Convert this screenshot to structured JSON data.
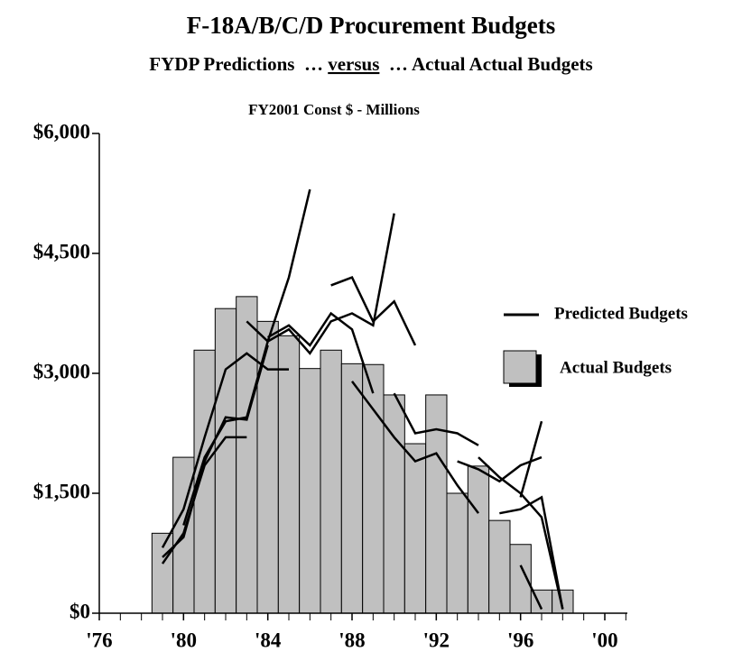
{
  "chart_data": {
    "type": "bar",
    "title": "F-18A/B/C/D Procurement Budgets",
    "subtitle": [
      "FYDP Predictions  … ",
      "versus",
      "  … Actual Actual Budgets"
    ],
    "ylabel": "FY2001 Const $ - Millions",
    "xlim": [
      1976,
      2000
    ],
    "xticks": [
      {
        "value": 1976,
        "label": "'76"
      },
      {
        "value": 1980,
        "label": "'80"
      },
      {
        "value": 1984,
        "label": "'84"
      },
      {
        "value": 1988,
        "label": "'88"
      },
      {
        "value": 1992,
        "label": "'92"
      },
      {
        "value": 1996,
        "label": "'96"
      },
      {
        "value": 2000,
        "label": "'00"
      }
    ],
    "ylim": [
      0,
      6000
    ],
    "yticks": [
      {
        "value": 0,
        "label": "$0"
      },
      {
        "value": 1500,
        "label": "$1,500"
      },
      {
        "value": 3000,
        "label": "$3,000"
      },
      {
        "value": 4500,
        "label": "$4,500"
      },
      {
        "value": 6000,
        "label": "$6,000"
      }
    ],
    "legend": "right",
    "series": [
      {
        "name": "Predicted Budgets",
        "type": "line",
        "color": "#000000",
        "x": [
          1979,
          1980,
          1981,
          1982,
          1983,
          null,
          1979,
          1980,
          1981,
          1982,
          1983,
          1984,
          null,
          1979,
          1980,
          1981,
          1982,
          1983,
          1984,
          1985,
          null,
          1980,
          1981,
          1982,
          1983,
          1984,
          1985,
          1986,
          null,
          1983,
          1984,
          1985,
          1986,
          1987,
          1988,
          1989,
          1990,
          null,
          1984,
          1985,
          1986,
          1987,
          1988,
          1989,
          null,
          1987,
          1988,
          1989,
          1990,
          1991,
          null,
          1988,
          1989,
          1990,
          1991,
          1992,
          1993,
          1994,
          null,
          1990,
          1991,
          1992,
          1993,
          1994,
          null,
          1993,
          1994,
          1995,
          1996,
          1997,
          null,
          1994,
          1995,
          1996,
          1997,
          1998,
          null,
          1995,
          1996,
          1997,
          1998,
          null,
          1996,
          1997,
          null,
          1996,
          1997
        ],
        "values": [
          620,
          1000,
          1850,
          2200,
          2200,
          null,
          700,
          950,
          1900,
          2450,
          2420,
          3350,
          null,
          820,
          1300,
          2200,
          3050,
          3250,
          3050,
          3050,
          null,
          1100,
          1950,
          2400,
          2450,
          3400,
          4200,
          5300,
          null,
          3650,
          3400,
          3550,
          3250,
          3650,
          3750,
          3600,
          5000,
          null,
          3450,
          3600,
          3350,
          3750,
          3550,
          2750,
          null,
          4100,
          4200,
          3650,
          3900,
          3350,
          null,
          2900,
          2550,
          2200,
          1900,
          2000,
          1600,
          1250,
          null,
          2750,
          2250,
          2300,
          2250,
          2100,
          null,
          1900,
          1800,
          1650,
          1850,
          1950,
          null,
          1950,
          1700,
          1500,
          1200,
          50,
          null,
          1250,
          1300,
          1450,
          50,
          null,
          600,
          50,
          null,
          1450,
          2400
        ]
      },
      {
        "name": "Actual Budgets",
        "type": "bar",
        "color": "#c0c0c0",
        "x": [
          1979,
          1980,
          1981,
          1982,
          1983,
          1984,
          1985,
          1986,
          1987,
          1988,
          1989,
          1990,
          1991,
          1992,
          1993,
          1994,
          1995,
          1996,
          1997,
          1998
        ],
        "values": [
          1000,
          1950,
          3290,
          3810,
          3960,
          3650,
          3470,
          3060,
          3290,
          3120,
          3110,
          2730,
          2120,
          2730,
          1500,
          1840,
          1160,
          860,
          290,
          290
        ]
      }
    ]
  }
}
